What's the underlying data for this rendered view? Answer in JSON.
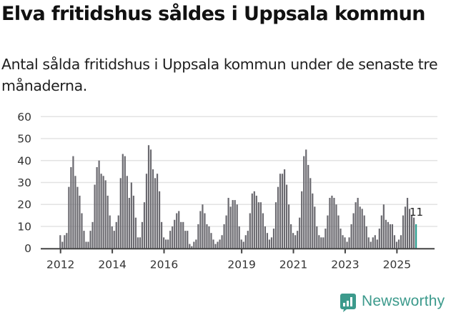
{
  "header": {
    "title": "Elva fritidshus såldes i Uppsala kommun",
    "subtitle": "Antal sålda fritidshus i Uppsala kommun under de senaste tre månaderna."
  },
  "branding": {
    "logo_icon": "newsworthy-bar-chart-bubble-icon",
    "logo_text": "Newsworthy",
    "color": "#3c9a8c"
  },
  "colors": {
    "bar": "#6b6a70",
    "highlight_bar": "#2a9d8f",
    "grid": "#e3e3e3",
    "axis": "#444444"
  },
  "chart_data": {
    "type": "bar",
    "title": "Elva fritidshus såldes i Uppsala kommun",
    "subtitle": "Antal sålda fritidshus i Uppsala kommun under de senaste tre månaderna.",
    "xlabel": "",
    "ylabel": "",
    "ylim": [
      0,
      60
    ],
    "yticks": [
      0,
      10,
      20,
      30,
      40,
      50,
      60
    ],
    "grid": true,
    "legend": "none",
    "x_start": "2012-01",
    "x_end": "2025-10",
    "frequency": "monthly",
    "xtick_labels": [
      "2012",
      "2014",
      "2016",
      "2019",
      "2021",
      "2023",
      "2025"
    ],
    "xtick_index": [
      0,
      24,
      48,
      84,
      108,
      132,
      156
    ],
    "highlight": {
      "index": 165,
      "label": "11"
    },
    "values": [
      6,
      3,
      6,
      7,
      28,
      37,
      42,
      33,
      28,
      24,
      16,
      8,
      3,
      3,
      8,
      12,
      29,
      37,
      40,
      34,
      33,
      31,
      24,
      15,
      10,
      8,
      12,
      15,
      32,
      43,
      42,
      33,
      23,
      30,
      24,
      14,
      5,
      5,
      12,
      21,
      34,
      47,
      45,
      36,
      32,
      34,
      26,
      12,
      5,
      4,
      4,
      8,
      10,
      13,
      16,
      17,
      12,
      12,
      8,
      8,
      2,
      1,
      3,
      4,
      11,
      17,
      20,
      16,
      11,
      10,
      7,
      4,
      2,
      3,
      4,
      6,
      11,
      15,
      23,
      19,
      22,
      22,
      20,
      10,
      4,
      3,
      6,
      8,
      16,
      25,
      26,
      24,
      21,
      21,
      16,
      10,
      7,
      4,
      5,
      9,
      21,
      28,
      34,
      34,
      36,
      29,
      20,
      11,
      7,
      6,
      8,
      14,
      26,
      42,
      45,
      38,
      32,
      25,
      19,
      10,
      6,
      5,
      5,
      9,
      15,
      23,
      24,
      23,
      20,
      15,
      9,
      6,
      5,
      3,
      5,
      11,
      16,
      21,
      23,
      19,
      18,
      15,
      10,
      5,
      3,
      5,
      6,
      4,
      9,
      15,
      20,
      13,
      12,
      11,
      11,
      6,
      3,
      4,
      6,
      15,
      19,
      23,
      18,
      15,
      14,
      11
    ]
  }
}
